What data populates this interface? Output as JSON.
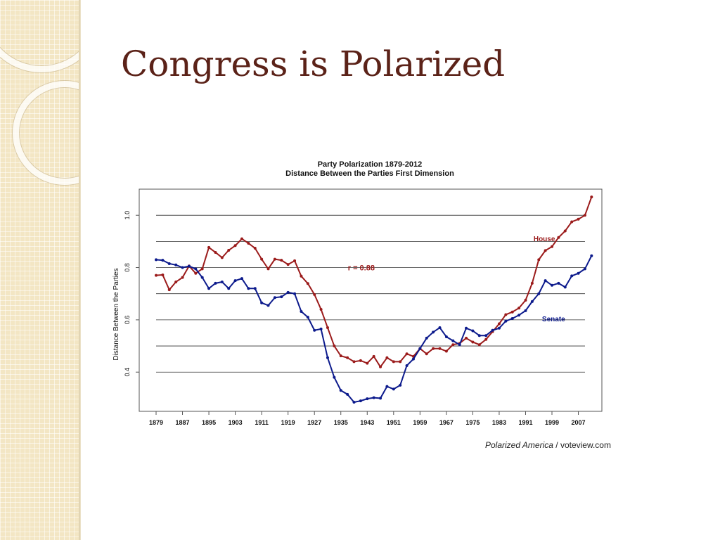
{
  "slide": {
    "title": "Congress is Polarized"
  },
  "caption": {
    "italic": "Polarized America",
    "rest": " / voteview.com"
  },
  "colors": {
    "house": "#9b1b1b",
    "senate": "#0c1a8c",
    "title": "#5b2218"
  },
  "chart_data": {
    "type": "line",
    "title": "Party Polarization 1879-2012",
    "subtitle": "Distance Between the Parties First Dimension",
    "xlabel": "",
    "ylabel": "Distance Between the Parties",
    "xlim": [
      1879,
      2012
    ],
    "ylim": [
      0.25,
      1.1
    ],
    "xticks": [
      "1879",
      "1887",
      "1895",
      "1903",
      "1911",
      "1919",
      "1927",
      "1935",
      "1943",
      "1951",
      "1959",
      "1967",
      "1975",
      "1983",
      "1991",
      "1999",
      "2007"
    ],
    "yticks": [
      "0.4",
      "0.6",
      "0.8",
      "1.0"
    ],
    "gridlines_y": [
      0.4,
      0.5,
      0.6,
      0.7,
      0.8,
      0.9,
      1.0
    ],
    "annotation": "r =  0.88",
    "x": [
      1879,
      1881,
      1883,
      1885,
      1887,
      1889,
      1891,
      1893,
      1895,
      1897,
      1899,
      1901,
      1903,
      1905,
      1907,
      1909,
      1911,
      1913,
      1915,
      1917,
      1919,
      1921,
      1923,
      1925,
      1927,
      1929,
      1931,
      1933,
      1935,
      1937,
      1939,
      1941,
      1943,
      1945,
      1947,
      1949,
      1951,
      1953,
      1955,
      1957,
      1959,
      1961,
      1963,
      1965,
      1967,
      1969,
      1971,
      1973,
      1975,
      1977,
      1979,
      1981,
      1983,
      1985,
      1987,
      1989,
      1991,
      1993,
      1995,
      1997,
      1999,
      2001,
      2003,
      2005,
      2007,
      2009,
      2011
    ],
    "series": [
      {
        "name": "House",
        "values": [
          0.77,
          0.772,
          0.715,
          0.745,
          0.762,
          0.806,
          0.778,
          0.795,
          0.877,
          0.858,
          0.838,
          0.866,
          0.884,
          0.91,
          0.893,
          0.874,
          0.832,
          0.795,
          0.832,
          0.828,
          0.812,
          0.826,
          0.767,
          0.739,
          0.697,
          0.64,
          0.57,
          0.5,
          0.462,
          0.455,
          0.44,
          0.444,
          0.434,
          0.46,
          0.42,
          0.455,
          0.44,
          0.44,
          0.47,
          0.46,
          0.49,
          0.47,
          0.49,
          0.49,
          0.48,
          0.505,
          0.51,
          0.53,
          0.515,
          0.505,
          0.525,
          0.555,
          0.585,
          0.62,
          0.63,
          0.645,
          0.675,
          0.74,
          0.83,
          0.865,
          0.88,
          0.915,
          0.94,
          0.975,
          0.985,
          1.0,
          1.07
        ]
      },
      {
        "name": "Senate",
        "values": [
          0.83,
          0.828,
          0.815,
          0.81,
          0.8,
          0.805,
          0.795,
          0.762,
          0.72,
          0.74,
          0.745,
          0.72,
          0.75,
          0.758,
          0.72,
          0.72,
          0.665,
          0.655,
          0.685,
          0.688,
          0.705,
          0.7,
          0.632,
          0.61,
          0.56,
          0.565,
          0.455,
          0.38,
          0.33,
          0.315,
          0.285,
          0.29,
          0.298,
          0.302,
          0.3,
          0.345,
          0.335,
          0.35,
          0.425,
          0.45,
          0.49,
          0.53,
          0.553,
          0.57,
          0.535,
          0.52,
          0.505,
          0.568,
          0.558,
          0.54,
          0.54,
          0.56,
          0.568,
          0.595,
          0.605,
          0.618,
          0.635,
          0.67,
          0.7,
          0.75,
          0.732,
          0.74,
          0.725,
          0.768,
          0.778,
          0.795,
          0.845
        ]
      }
    ]
  }
}
